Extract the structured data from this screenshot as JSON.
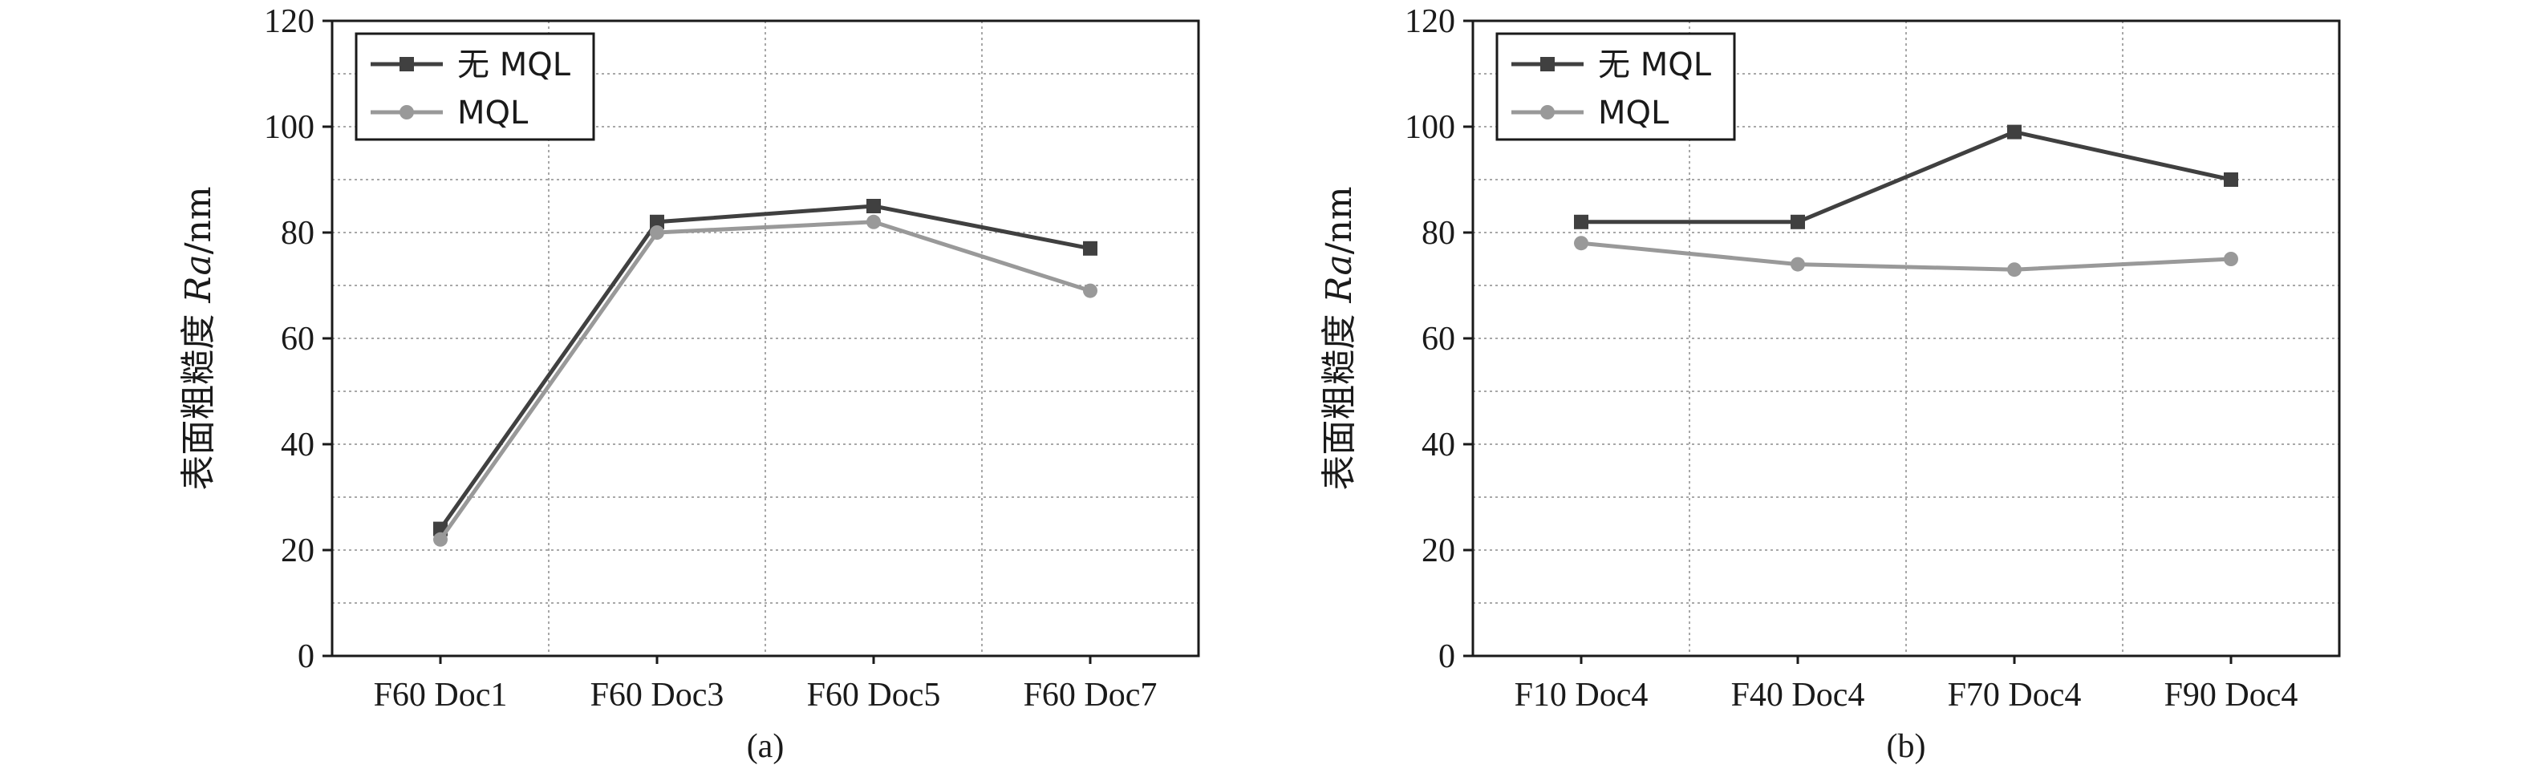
{
  "chart_data": [
    {
      "type": "line",
      "panel_label": "(a)",
      "ylabel": "表面粗糙度 Ra/nm",
      "ylim": [
        0,
        120
      ],
      "yticks": [
        0,
        20,
        40,
        60,
        80,
        100,
        120
      ],
      "categories": [
        "F60 Doc1",
        "F60 Doc3",
        "F60 Doc5",
        "F60 Doc7"
      ],
      "grid": true,
      "legend": "top-left",
      "series": [
        {
          "name": "无 MQL",
          "color": "#404040",
          "marker": "square",
          "values": [
            24,
            82,
            85,
            77
          ]
        },
        {
          "name": "MQL",
          "color": "#999999",
          "marker": "circle",
          "values": [
            22,
            80,
            82,
            69
          ]
        }
      ]
    },
    {
      "type": "line",
      "panel_label": "(b)",
      "ylabel": "表面粗糙度 Ra/nm",
      "ylim": [
        0,
        120
      ],
      "yticks": [
        0,
        20,
        40,
        60,
        80,
        100,
        120
      ],
      "categories": [
        "F10 Doc4",
        "F40 Doc4",
        "F70 Doc4",
        "F90 Doc4"
      ],
      "grid": true,
      "legend": "top-left",
      "series": [
        {
          "name": "无 MQL",
          "color": "#404040",
          "marker": "square",
          "values": [
            82,
            82,
            99,
            90
          ]
        },
        {
          "name": "MQL",
          "color": "#999999",
          "marker": "circle",
          "values": [
            78,
            74,
            73,
            75
          ]
        }
      ]
    }
  ]
}
